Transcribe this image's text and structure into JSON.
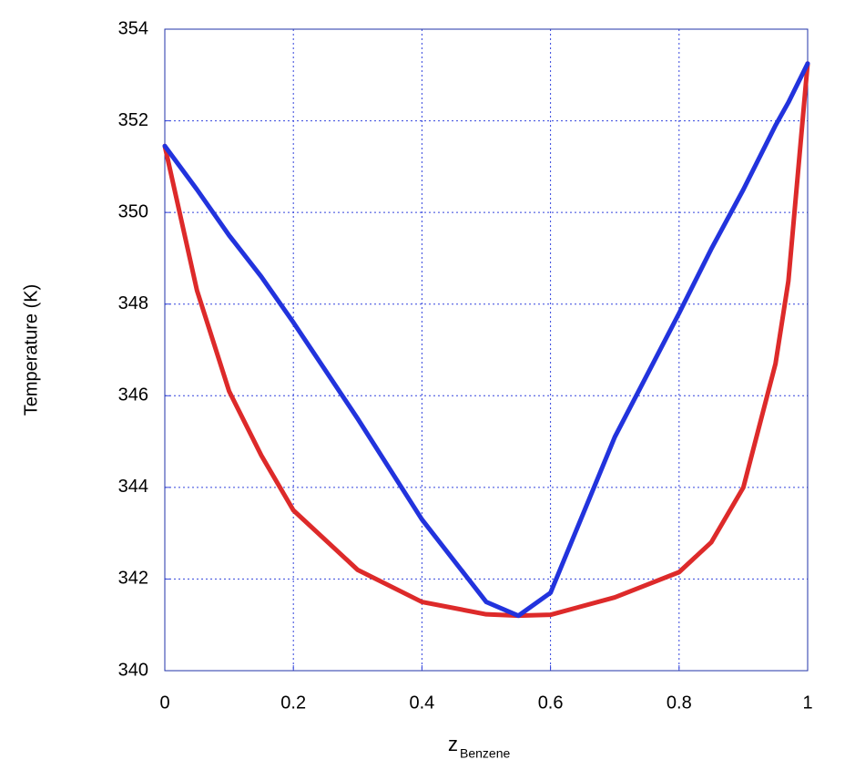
{
  "chart_data": {
    "type": "line",
    "y_label": "Temperature (K)",
    "x_label": "z",
    "x_label_subscript": "Benzene",
    "x": [
      0,
      0.05,
      0.1,
      0.15,
      0.2,
      0.3,
      0.4,
      0.5,
      0.55,
      0.6,
      0.7,
      0.8,
      0.85,
      0.9,
      0.95,
      0.97,
      1
    ],
    "series": [
      {
        "color": "#2233dd",
        "values": [
          351.45,
          350.5,
          349.5,
          348.6,
          347.6,
          345.5,
          343.3,
          341.5,
          341.2,
          341.7,
          345.1,
          347.8,
          349.2,
          350.5,
          351.9,
          352.4,
          353.25
        ]
      },
      {
        "color": "#dd2a2a",
        "values": [
          351.45,
          348.3,
          346.1,
          344.7,
          343.5,
          342.2,
          341.5,
          341.23,
          341.2,
          341.22,
          341.6,
          342.15,
          342.8,
          344.0,
          346.7,
          348.5,
          353.25
        ]
      }
    ],
    "xlim": [
      0,
      1
    ],
    "xticks": [
      0,
      0.2,
      0.4,
      0.6,
      0.8,
      1
    ],
    "ylim": [
      340,
      354
    ],
    "yticks": [
      340,
      342,
      344,
      346,
      348,
      350,
      352,
      354
    ],
    "grid": true,
    "grid_color": "#3344dd"
  }
}
